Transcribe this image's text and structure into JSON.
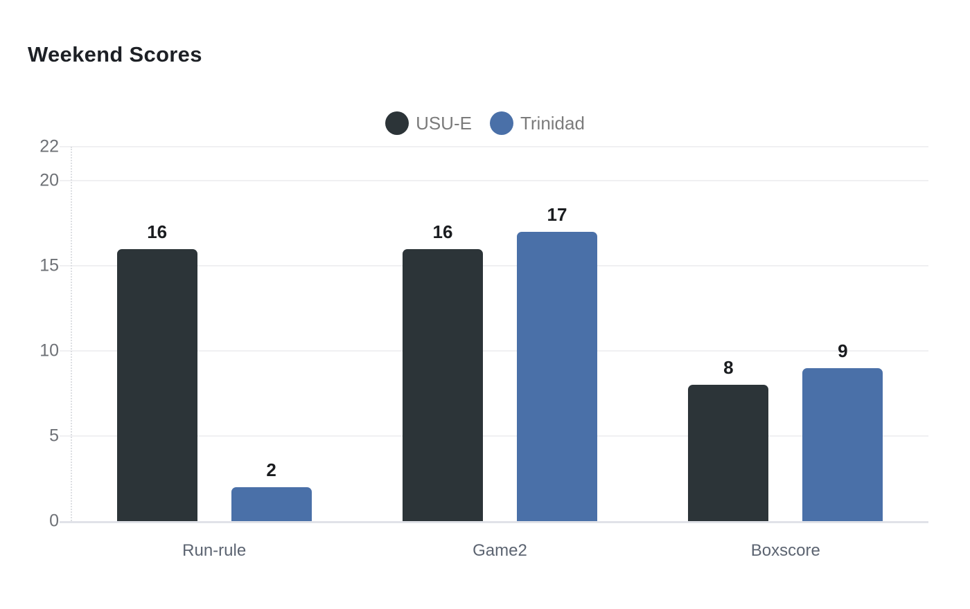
{
  "title": "Weekend Scores",
  "chart_data": {
    "type": "bar",
    "title": "Weekend Scores",
    "categories": [
      "Run-rule",
      "Game2",
      "Boxscore"
    ],
    "series": [
      {
        "name": "USU-E",
        "color": "#2c3438",
        "values": [
          16,
          16,
          8
        ]
      },
      {
        "name": "Trinidad",
        "color": "#4a70a8",
        "values": [
          2,
          17,
          9
        ]
      }
    ],
    "xlabel": "",
    "ylabel": "",
    "ylim": [
      0,
      22
    ],
    "yticks": [
      0,
      5,
      10,
      15,
      20,
      22
    ],
    "grid": true,
    "legend_position": "top-center",
    "value_labels": true
  },
  "style_colors": {
    "background": "#ffffff",
    "gridline": "#f0f0f2",
    "baseline": "#e0e2e8",
    "axis_dotted": "#dcdee2",
    "tick_text": "#6e7176",
    "category_text": "#5c6471",
    "legend_text": "#7b7b7b",
    "value_text": "#1a1c1f",
    "title_text": "#1d2025"
  }
}
